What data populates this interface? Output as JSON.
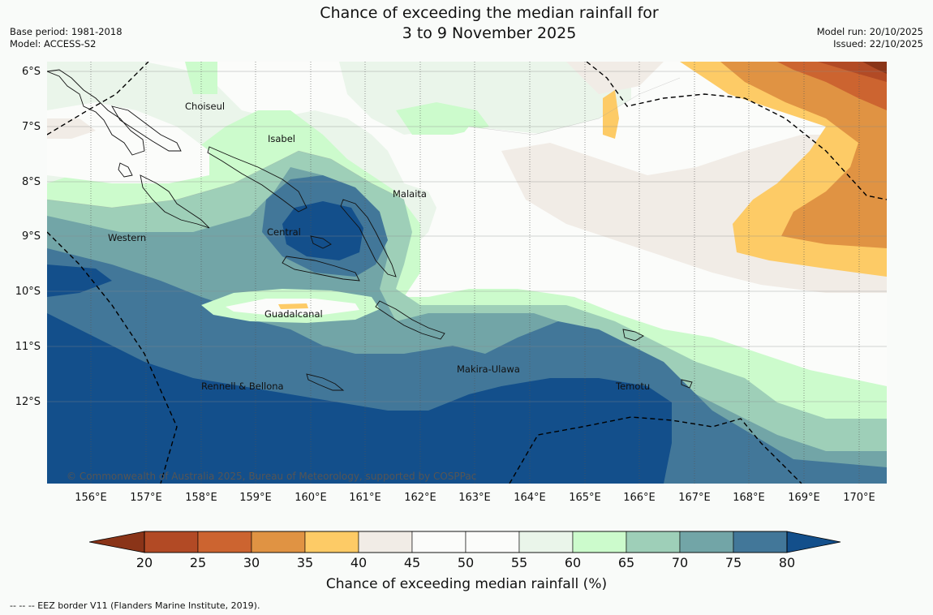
{
  "title": {
    "line1": "Chance of exceeding the median rainfall for",
    "line2": "3 to 9 November 2025"
  },
  "meta_left": {
    "base_period": "Base period: 1981-2018",
    "model": "Model: ACCESS-S2"
  },
  "meta_right": {
    "model_run": "Model run: 20/10/2025",
    "issued": "Issued: 22/10/2025"
  },
  "lat_labels": [
    "6°S",
    "7°S",
    "8°S",
    "9°S",
    "10°S",
    "11°S",
    "12°S"
  ],
  "lon_labels": [
    "156°E",
    "157°E",
    "158°E",
    "159°E",
    "160°E",
    "161°E",
    "162°E",
    "163°E",
    "164°E",
    "165°E",
    "166°E",
    "167°E",
    "168°E",
    "169°E",
    "170°E"
  ],
  "places": {
    "choiseul": "Choiseul",
    "isabel": "Isabel",
    "malaita": "Malaita",
    "western": "Western",
    "central": "Central",
    "guadalcanal": "Guadalcanal",
    "makira": "Makira-Ulawa",
    "rennell": "Rennell & Bellona",
    "temotu": "Temotu"
  },
  "copyright": "© Commonwealth of Australia 2025, Bureau of Meteorology, supported by COSPPac",
  "colorbar": {
    "colors": [
      "#b24a25",
      "#cc6430",
      "#e09343",
      "#fdcb66",
      "#f1ece6",
      "#fbfcfa",
      "#fbfcfa",
      "#eaf5ea",
      "#ccfbcc",
      "#9ecfb8",
      "#72a5a7",
      "#427799"
    ],
    "low_extend": "#8a3418",
    "high_extend": "#134f8b",
    "ticks": [
      "20",
      "25",
      "30",
      "35",
      "40",
      "45",
      "50",
      "55",
      "60",
      "65",
      "70",
      "75",
      "80"
    ],
    "title": "Chance of exceeding median rainfall (%)"
  },
  "footnote": "--  --  -- EEZ border V11 (Flanders Marine Institute, 2019)."
}
